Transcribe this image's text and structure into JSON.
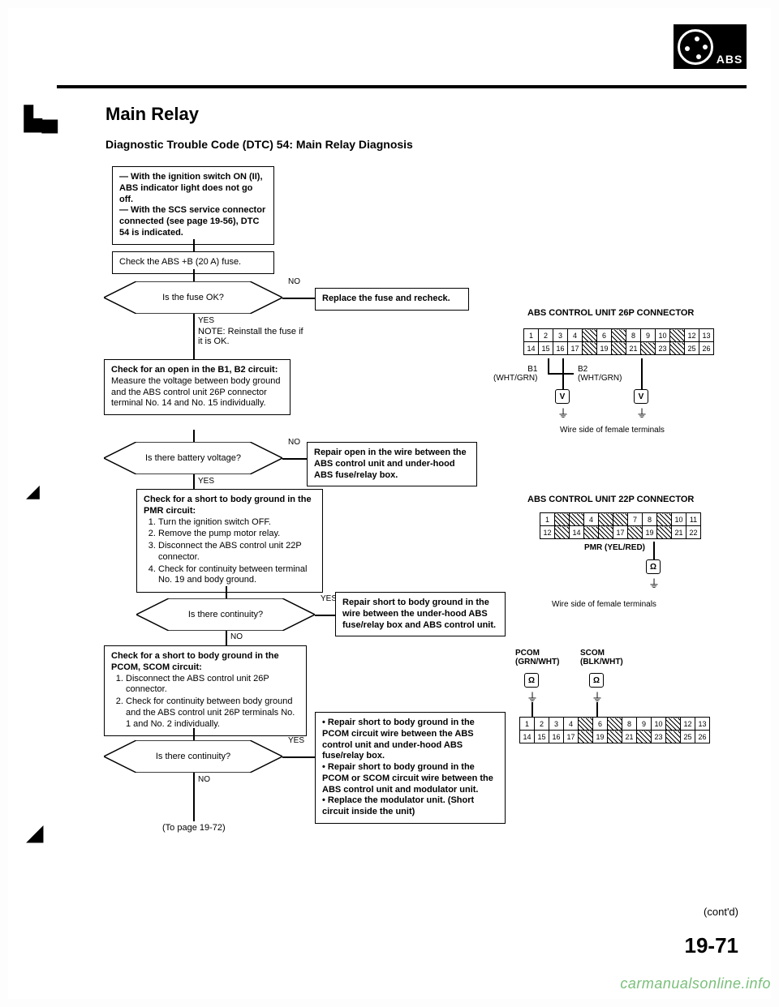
{
  "logo_text": "ABS",
  "tab_mark": "▙ ▄",
  "title": "Main Relay",
  "subtitle": "Diagnostic Trouble Code (DTC) 54: Main Relay Diagnosis",
  "flow": {
    "start": "— With the ignition switch ON (II), ABS indicator light does not go off.\n— With the SCS service connector connected (see page 19-56), DTC 54 is indicated.",
    "check_fuse": "Check the ABS +B (20 A) fuse.",
    "fuse_ok": "Is the fuse OK?",
    "no1": "NO",
    "replace_fuse": "Replace the fuse and recheck.",
    "yes1": "YES",
    "note_reinstall": "NOTE: Reinstall the fuse if it is OK.",
    "check_open": "Check for an open in the B1, B2 circuit:",
    "check_open_body": "Measure the voltage between body ground and the ABS control unit 26P connector terminal No. 14 and No. 15 individually.",
    "batt_volt": "Is there battery voltage?",
    "no2": "NO",
    "repair_open": "Repair open in the wire between the ABS control unit and under-hood ABS fuse/relay box.",
    "yes2": "YES",
    "check_short_pmr_h": "Check for a short to body ground in the PMR circuit:",
    "check_short_pmr_items": [
      "Turn the ignition switch OFF.",
      "Remove the pump motor relay.",
      "Disconnect the ABS control unit 22P connector.",
      "Check for continuity between terminal No. 19 and body ground."
    ],
    "cont1": "Is there continuity?",
    "yes3": "YES",
    "repair_short_pmr": "Repair short to body ground in the wire between the under-hood ABS fuse/relay box and ABS control unit.",
    "no3": "NO",
    "check_short_pcom_h": "Check for a short to body ground in the PCOM, SCOM circuit:",
    "check_short_pcom_items": [
      "Disconnect the ABS control unit 26P connector.",
      "Check for continuity between body ground and the ABS control unit 26P terminals No. 1 and No. 2 individually."
    ],
    "cont2": "Is there continuity?",
    "yes4": "YES",
    "repair_multi": "• Repair short to body ground in the PCOM circuit wire between the ABS control unit and under-hood ABS fuse/relay box.\n• Repair short to body ground in the PCOM or SCOM circuit wire between the ABS control unit and modulator unit.\n• Replace the modulator unit. (Short circuit inside the unit)",
    "no4": "NO",
    "to_page": "(To page 19-72)"
  },
  "conn26_title": "ABS CONTROL UNIT 26P CONNECTOR",
  "conn26": {
    "row1": [
      "1",
      "2",
      "3",
      "4",
      "/",
      "6",
      "/",
      "8",
      "9",
      "10",
      "/",
      "12",
      "13"
    ],
    "row2": [
      "14",
      "15",
      "16",
      "17",
      "/",
      "19",
      "/",
      "21",
      "/",
      "23",
      "/",
      "25",
      "26"
    ]
  },
  "b1_label": "B1\n(WHT/GRN)",
  "b2_label": "B2\n(WHT/GRN)",
  "wire_note1": "Wire side of female terminals",
  "conn22_title": "ABS CONTROL UNIT 22P CONNECTOR",
  "conn22": {
    "row1": [
      "1",
      "/",
      "/",
      "4",
      "/",
      "/",
      "7",
      "8",
      "/",
      "10",
      "11"
    ],
    "row2": [
      "12",
      "/",
      "14",
      "/",
      "/",
      "17",
      "/",
      "19",
      "/",
      "21",
      "22"
    ]
  },
  "pmr_label": "PMR (YEL/RED)",
  "wire_note2": "Wire side of female terminals",
  "pcom_label": "PCOM\n(GRN/WHT)",
  "scom_label": "SCOM\n(BLK/WHT)",
  "conn26b": {
    "row1": [
      "1",
      "2",
      "3",
      "4",
      "/",
      "6",
      "/",
      "8",
      "9",
      "10",
      "/",
      "12",
      "13"
    ],
    "row2": [
      "14",
      "15",
      "16",
      "17",
      "/",
      "19",
      "/",
      "21",
      "/",
      "23",
      "/",
      "25",
      "26"
    ]
  },
  "contd": "(cont'd)",
  "page_number": "19-71",
  "watermark": "carmanualsonline.info",
  "v_sym": "V",
  "gnd_sym": "⏚",
  "ohm_sym": "Ω"
}
